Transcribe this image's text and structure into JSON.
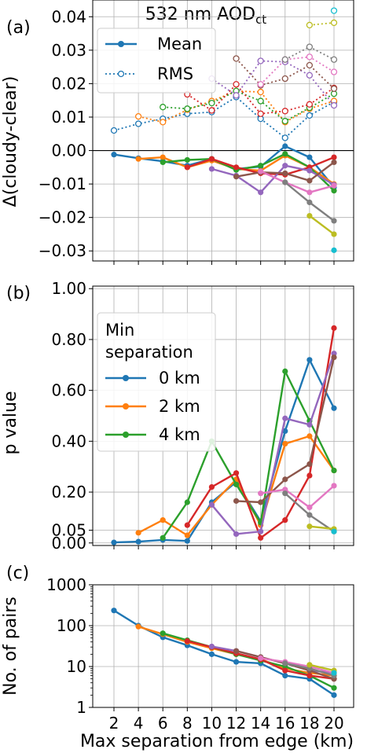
{
  "figure": {
    "title_main": "532 nm AOD",
    "title_sub": "ct",
    "xlabel": "Max separation from edge (km)",
    "x_ticks": [
      "2",
      "4",
      "6",
      "8",
      "10",
      "12",
      "14",
      "16",
      "18",
      "20"
    ]
  },
  "colors": {
    "c0": "#1f77b4",
    "c1": "#ff7f0e",
    "c2": "#2ca02c",
    "c3": "#d62728",
    "c4": "#9467bd",
    "c5": "#8c564b",
    "c6": "#e377c2",
    "c7": "#7f7f7f",
    "c8": "#bcbd22",
    "c9": "#17becf"
  },
  "chart_data": [
    {
      "panel": "(a)",
      "type": "line",
      "ylabel": "Δ(cloudy-clear)",
      "ylim": [
        -0.033,
        0.045
      ],
      "yticks": [
        {
          "v": 0.04,
          "label": "0.04"
        },
        {
          "v": 0.03,
          "label": "0.03"
        },
        {
          "v": 0.02,
          "label": "0.02"
        },
        {
          "v": 0.01,
          "label": "0.01"
        },
        {
          "v": 0.0,
          "label": "0.00"
        },
        {
          "v": -0.01,
          "label": "−0.01"
        },
        {
          "v": -0.02,
          "label": "−0.02"
        },
        {
          "v": -0.03,
          "label": "−0.03"
        }
      ],
      "legend": {
        "position": "top-left",
        "entries": [
          "Mean",
          "RMS"
        ]
      },
      "mean_series": [
        {
          "color": "c0",
          "x": [
            2,
            4,
            6,
            8,
            10,
            12,
            14,
            16,
            18,
            20
          ],
          "y": [
            -0.0012,
            -0.0023,
            -0.0032,
            -0.0045,
            -0.0025,
            -0.0055,
            -0.0048,
            0.0013,
            -0.002,
            -0.011
          ]
        },
        {
          "color": "c1",
          "x": [
            4,
            6,
            8,
            10,
            12,
            14,
            16,
            18,
            20
          ],
          "y": [
            -0.0025,
            -0.002,
            -0.005,
            -0.003,
            -0.0055,
            -0.006,
            -0.0015,
            -0.005,
            -0.01
          ]
        },
        {
          "color": "c2",
          "x": [
            6,
            8,
            10,
            12,
            14,
            16,
            18,
            20
          ],
          "y": [
            -0.0035,
            -0.0028,
            -0.0025,
            -0.0058,
            -0.0045,
            -0.001,
            -0.005,
            -0.012
          ]
        },
        {
          "color": "c3",
          "x": [
            8,
            10,
            12,
            14,
            16,
            18,
            20
          ],
          "y": [
            -0.005,
            -0.0025,
            -0.005,
            -0.0068,
            -0.0072,
            -0.005,
            -0.002
          ]
        },
        {
          "color": "c4",
          "x": [
            10,
            12,
            14,
            16,
            18,
            20
          ],
          "y": [
            -0.0055,
            -0.0075,
            -0.0125,
            -0.0045,
            -0.006,
            -0.0102
          ]
        },
        {
          "color": "c5",
          "x": [
            12,
            14,
            16,
            18,
            20
          ],
          "y": [
            -0.0078,
            -0.0065,
            -0.0068,
            -0.009,
            -0.0035
          ]
        },
        {
          "color": "c6",
          "x": [
            14,
            16,
            18,
            20
          ],
          "y": [
            -0.0062,
            -0.0095,
            -0.0125,
            -0.0105
          ]
        },
        {
          "color": "c7",
          "x": [
            16,
            18,
            20
          ],
          "y": [
            -0.0095,
            -0.0155,
            -0.021
          ]
        },
        {
          "color": "c8",
          "x": [
            18,
            20
          ],
          "y": [
            -0.0195,
            -0.025
          ]
        },
        {
          "color": "c9",
          "x": [
            20
          ],
          "y": [
            -0.0298
          ]
        }
      ],
      "rms_series": [
        {
          "color": "c0",
          "x": [
            2,
            4,
            6,
            8,
            10,
            12,
            14,
            16,
            18,
            20
          ],
          "y": [
            0.006,
            0.008,
            0.0095,
            0.011,
            0.0115,
            0.016,
            0.0095,
            0.0038,
            0.0105,
            0.0145
          ]
        },
        {
          "color": "c1",
          "x": [
            4,
            6,
            8,
            10,
            12,
            14,
            16,
            18,
            20
          ],
          "y": [
            0.0102,
            0.0085,
            0.0122,
            0.0148,
            0.0178,
            0.0175,
            0.0085,
            0.0125,
            0.0148
          ]
        },
        {
          "color": "c2",
          "x": [
            6,
            8,
            10,
            12,
            14,
            16,
            18,
            20
          ],
          "y": [
            0.013,
            0.0125,
            0.0142,
            0.0178,
            0.0148,
            0.0088,
            0.0128,
            0.017
          ]
        },
        {
          "color": "c3",
          "x": [
            8,
            10,
            12,
            14,
            16,
            18,
            20
          ],
          "y": [
            0.0168,
            0.012,
            0.0198,
            0.011,
            0.0118,
            0.0138,
            0.0187
          ]
        },
        {
          "color": "c4",
          "x": [
            10,
            12,
            14,
            16,
            18,
            20
          ],
          "y": [
            0.0215,
            0.0165,
            0.0268,
            0.0265,
            0.0225,
            0.0135
          ]
        },
        {
          "color": "c5",
          "x": [
            12,
            14,
            16,
            18,
            20
          ],
          "y": [
            0.0275,
            0.0195,
            0.0215,
            0.0255,
            0.0185
          ]
        },
        {
          "color": "c6",
          "x": [
            14,
            16,
            18,
            20
          ],
          "y": [
            0.0198,
            0.0272,
            0.028,
            0.0235
          ]
        },
        {
          "color": "c7",
          "x": [
            16,
            18,
            20
          ],
          "y": [
            0.0272,
            0.031,
            0.0272
          ]
        },
        {
          "color": "c8",
          "x": [
            18,
            20
          ],
          "y": [
            0.0375,
            0.0382
          ]
        },
        {
          "color": "c9",
          "x": [
            20
          ],
          "y": [
            0.0418
          ]
        }
      ]
    },
    {
      "panel": "(b)",
      "type": "line",
      "ylabel": "p value",
      "ylim": [
        -0.01,
        1.01
      ],
      "yticks": [
        {
          "v": 1.0,
          "label": "1.00"
        },
        {
          "v": 0.8,
          "label": "0.80"
        },
        {
          "v": 0.6,
          "label": "0.60"
        },
        {
          "v": 0.4,
          "label": "0.40"
        },
        {
          "v": 0.2,
          "label": "0.20"
        },
        {
          "v": 0.05,
          "label": "0.05"
        },
        {
          "v": 0.0,
          "label": "0.00"
        }
      ],
      "legend": {
        "position": "upper-left",
        "title": "Min\nseparation",
        "entries": [
          "0 km",
          "2 km",
          "4 km"
        ]
      },
      "series": [
        {
          "color": "c0",
          "x": [
            2,
            4,
            6,
            8,
            10,
            12,
            14,
            16,
            18,
            20
          ],
          "y": [
            0.002,
            0.005,
            0.012,
            0.008,
            0.16,
            0.24,
            0.085,
            0.44,
            0.72,
            0.53
          ]
        },
        {
          "color": "c1",
          "x": [
            4,
            6,
            8,
            10,
            12,
            14,
            16,
            18,
            20
          ],
          "y": [
            0.04,
            0.09,
            0.03,
            0.15,
            0.25,
            0.07,
            0.39,
            0.42,
            0.285
          ]
        },
        {
          "color": "c2",
          "x": [
            6,
            8,
            10,
            12,
            14,
            16,
            18,
            20
          ],
          "y": [
            0.02,
            0.16,
            0.4,
            0.23,
            0.08,
            0.675,
            0.48,
            0.285
          ]
        },
        {
          "color": "c3",
          "x": [
            8,
            10,
            12,
            14,
            16,
            18,
            20
          ],
          "y": [
            0.07,
            0.22,
            0.275,
            0.02,
            0.09,
            0.265,
            0.845
          ]
        },
        {
          "color": "c4",
          "x": [
            10,
            12,
            14,
            16,
            18,
            20
          ],
          "y": [
            0.15,
            0.035,
            0.045,
            0.49,
            0.465,
            0.745
          ]
        },
        {
          "color": "c5",
          "x": [
            12,
            14,
            16,
            18,
            20
          ],
          "y": [
            0.165,
            0.16,
            0.25,
            0.31,
            0.73
          ]
        },
        {
          "color": "c6",
          "x": [
            14,
            16,
            18,
            20
          ],
          "y": [
            0.195,
            0.21,
            0.14,
            0.225
          ]
        },
        {
          "color": "c7",
          "x": [
            16,
            18,
            20
          ],
          "y": [
            0.195,
            0.11,
            0.045
          ]
        },
        {
          "color": "c8",
          "x": [
            18,
            20
          ],
          "y": [
            0.065,
            0.055
          ]
        },
        {
          "color": "c9",
          "x": [
            20
          ],
          "y": [
            0.045
          ]
        }
      ]
    },
    {
      "panel": "(c)",
      "type": "line",
      "ylabel": "No. of pairs",
      "yscale": "log",
      "ylim": [
        1,
        1000
      ],
      "yticks": [
        {
          "v": 1000,
          "label": "1000"
        },
        {
          "v": 100,
          "label": "100"
        },
        {
          "v": 10,
          "label": "10"
        },
        {
          "v": 1,
          "label": "1"
        }
      ],
      "series": [
        {
          "color": "c0",
          "x": [
            2,
            4,
            6,
            8,
            10,
            12,
            14,
            16,
            18,
            20
          ],
          "y": [
            235,
            100,
            52,
            33,
            20,
            13,
            12,
            6,
            5,
            2
          ]
        },
        {
          "color": "c1",
          "x": [
            4,
            6,
            8,
            10,
            12,
            14,
            16,
            18,
            20
          ],
          "y": [
            95,
            62,
            40,
            28,
            20,
            15,
            9,
            7,
            6
          ]
        },
        {
          "color": "c2",
          "x": [
            6,
            8,
            10,
            12,
            14,
            16,
            18,
            20
          ],
          "y": [
            65,
            44,
            30,
            20,
            14,
            10,
            6,
            3
          ]
        },
        {
          "color": "c3",
          "x": [
            8,
            10,
            12,
            14,
            16,
            18,
            20
          ],
          "y": [
            42,
            30,
            21,
            15,
            8,
            6,
            5
          ]
        },
        {
          "color": "c4",
          "x": [
            10,
            12,
            14,
            16,
            18,
            20
          ],
          "y": [
            31,
            24,
            17,
            12,
            8,
            7
          ]
        },
        {
          "color": "c5",
          "x": [
            12,
            14,
            16,
            18,
            20
          ],
          "y": [
            24,
            17,
            12,
            8,
            5
          ]
        },
        {
          "color": "c6",
          "x": [
            14,
            16,
            18,
            20
          ],
          "y": [
            16,
            13,
            10,
            7
          ]
        },
        {
          "color": "c7",
          "x": [
            16,
            18,
            20
          ],
          "y": [
            12,
            9,
            6
          ]
        },
        {
          "color": "c8",
          "x": [
            18,
            20
          ],
          "y": [
            11,
            8
          ]
        },
        {
          "color": "c9",
          "x": [
            20
          ],
          "y": [
            7
          ]
        }
      ]
    }
  ]
}
